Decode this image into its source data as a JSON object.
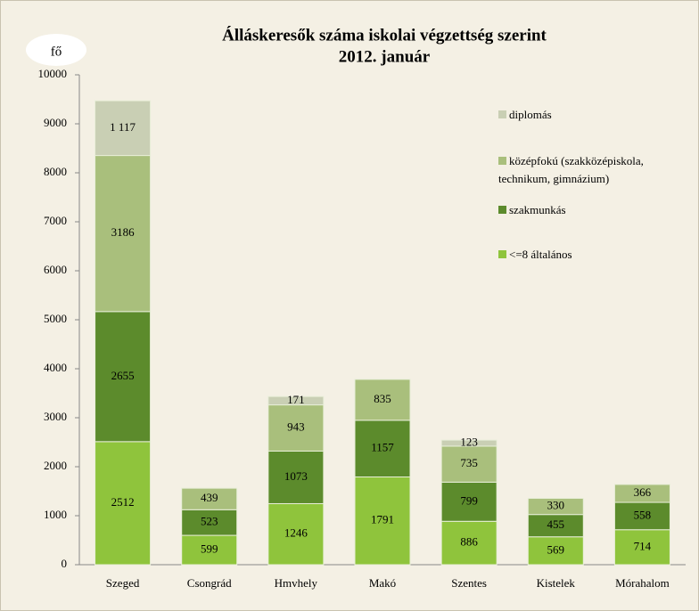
{
  "chart_data": {
    "type": "stacked_bar",
    "title": "Álláskeresők száma iskolai végzettség szerint",
    "subtitle": "2012. január",
    "y_label": "fő",
    "categories": [
      "Szeged",
      "Csongrád",
      "Hmvhely",
      "Makó",
      "Szentes",
      "Kistelek",
      "Mórahalom"
    ],
    "series": [
      {
        "name": "<=8 általános",
        "color": "#8fc43c",
        "values": [
          2512,
          599,
          1246,
          1791,
          886,
          569,
          714
        ]
      },
      {
        "name": "szakmunkás",
        "color": "#5c8b2c",
        "values": [
          2655,
          523,
          1073,
          1157,
          799,
          455,
          558
        ]
      },
      {
        "name": "középfokú (szakközépiskola, technikum, gimnázium)",
        "color": "#a9bf7c",
        "values": [
          3186,
          439,
          943,
          835,
          735,
          330,
          366
        ]
      },
      {
        "name": "diplomás",
        "color": "#c9cfb4",
        "values": [
          1117,
          null,
          171,
          null,
          123,
          null,
          null
        ],
        "value_labels": [
          "1 117",
          null,
          "171",
          null,
          "123",
          null,
          null
        ]
      }
    ],
    "ylim": [
      0,
      10000
    ],
    "yticks": [
      0,
      1000,
      2000,
      3000,
      4000,
      5000,
      6000,
      7000,
      8000,
      9000,
      10000
    ],
    "legend": "right"
  }
}
